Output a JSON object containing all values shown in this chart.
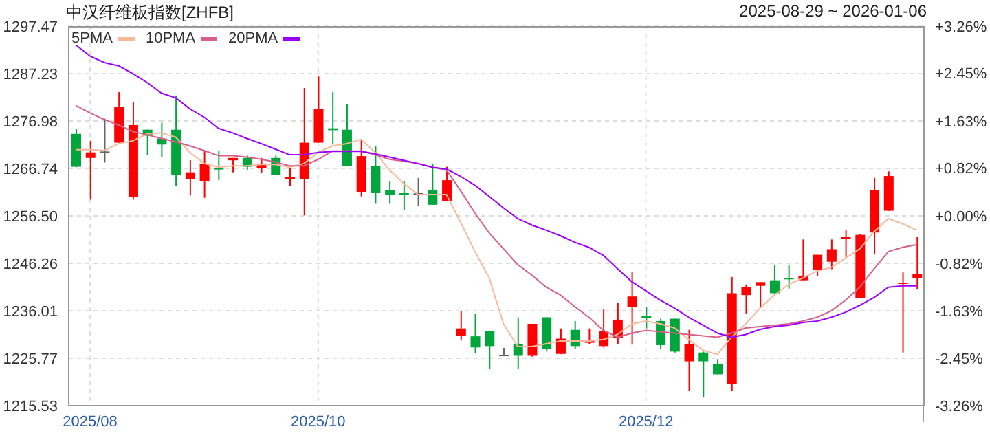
{
  "chart_data": {
    "type": "candlestick",
    "title": "中汉纤维板指数[ZHFB]",
    "subtitle": "2025-08-29 ~ 2026-01-06",
    "categories": [
      null,
      "2025/08",
      null,
      null,
      null,
      null,
      null,
      null,
      null,
      null,
      null,
      null,
      null,
      null,
      null,
      null,
      null,
      "2025/10",
      null,
      null,
      null,
      null,
      null,
      null,
      null,
      null,
      null,
      null,
      null,
      null,
      null,
      null,
      null,
      null,
      null,
      null,
      null,
      null,
      null,
      null,
      "2025/12",
      null,
      null,
      null,
      null,
      null,
      null,
      null,
      null,
      null,
      null,
      null,
      null,
      null,
      null,
      null,
      null,
      null,
      null,
      null
    ],
    "ohlc": [
      [
        1274.2,
        1275.2,
        1267.0,
        1267.1
      ],
      [
        1269.0,
        1272.7,
        1260.0,
        1270.2
      ],
      [
        1270.4,
        1277.5,
        1268.0,
        1270.4
      ],
      [
        1272.3,
        1283.2,
        1272.3,
        1280.1
      ],
      [
        1260.6,
        1281.0,
        1260.0,
        1276.1
      ],
      [
        1275.1,
        1275.1,
        1269.7,
        1273.8
      ],
      [
        1273.2,
        1276.6,
        1269.2,
        1271.9
      ],
      [
        1275.1,
        1282.5,
        1263.0,
        1265.4
      ],
      [
        1264.5,
        1268.5,
        1260.9,
        1265.9
      ],
      [
        1264.0,
        1270.6,
        1260.4,
        1267.8
      ],
      [
        1266.8,
        1270.6,
        1264.2,
        1266.7
      ],
      [
        1268.5,
        1269.0,
        1265.9,
        1269.0
      ],
      [
        1269.0,
        1269.5,
        1266.4,
        1267.1
      ],
      [
        1266.8,
        1269.0,
        1265.7,
        1267.8
      ],
      [
        1269.0,
        1269.5,
        1265.4,
        1265.4
      ],
      [
        1264.5,
        1266.8,
        1263.0,
        1264.9
      ],
      [
        1264.5,
        1284.1,
        1256.6,
        1272.3
      ],
      [
        1272.3,
        1286.6,
        1272.3,
        1279.6
      ],
      [
        1275.4,
        1283.2,
        1271.9,
        1275.0
      ],
      [
        1275.1,
        1280.6,
        1267.3,
        1267.3
      ],
      [
        1261.6,
        1272.8,
        1260.7,
        1269.4
      ],
      [
        1267.3,
        1271.6,
        1259.1,
        1261.4
      ],
      [
        1262.1,
        1264.0,
        1259.1,
        1261.0
      ],
      [
        1261.4,
        1264.0,
        1257.8,
        1261.0
      ],
      [
        1261.4,
        1264.7,
        1258.6,
        1261.4
      ],
      [
        1262.1,
        1267.8,
        1258.9,
        1258.9
      ],
      [
        1259.7,
        1267.1,
        1259.7,
        1264.2
      ],
      [
        1230.6,
        1236.0,
        1229.6,
        1232.2
      ],
      [
        1230.5,
        1235.4,
        1226.8,
        1228.1
      ],
      [
        1231.7,
        1231.7,
        1223.5,
        1228.4
      ],
      [
        1226.5,
        1228.0,
        1226.5,
        1226.5
      ],
      [
        1228.9,
        1234.6,
        1223.5,
        1226.3
      ],
      [
        1226.3,
        1233.2,
        1226.1,
        1233.2
      ],
      [
        1234.6,
        1234.6,
        1227.2,
        1227.7
      ],
      [
        1226.7,
        1232.2,
        1226.7,
        1230.0
      ],
      [
        1231.9,
        1233.8,
        1227.7,
        1228.4
      ],
      [
        1229.1,
        1232.2,
        1228.9,
        1229.7
      ],
      [
        1228.4,
        1236.3,
        1228.1,
        1231.7
      ],
      [
        1230.1,
        1237.7,
        1228.9,
        1234.1
      ],
      [
        1236.8,
        1244.5,
        1228.7,
        1239.1
      ],
      [
        1234.9,
        1236.8,
        1232.2,
        1234.4
      ],
      [
        1233.8,
        1234.3,
        1227.7,
        1228.6
      ],
      [
        1234.3,
        1234.3,
        1227.0,
        1227.2
      ],
      [
        1225.1,
        1231.9,
        1218.7,
        1228.9
      ],
      [
        1227.0,
        1227.2,
        1217.3,
        1225.1
      ],
      [
        1224.6,
        1225.6,
        1222.3,
        1222.3
      ],
      [
        1220.2,
        1243.3,
        1218.7,
        1239.8
      ],
      [
        1239.4,
        1241.7,
        1235.3,
        1241.2
      ],
      [
        1241.4,
        1242.2,
        1236.7,
        1242.2
      ],
      [
        1242.6,
        1245.8,
        1239.8,
        1239.8
      ],
      [
        1243.1,
        1245.8,
        1240.8,
        1242.8
      ],
      [
        1242.6,
        1251.4,
        1242.6,
        1243.6
      ],
      [
        1244.8,
        1248.1,
        1243.6,
        1248.1
      ],
      [
        1246.6,
        1251.4,
        1245.0,
        1249.3
      ],
      [
        1251.5,
        1253.4,
        1247.6,
        1251.9
      ],
      [
        1238.7,
        1252.6,
        1238.7,
        1252.4
      ],
      [
        1252.9,
        1264.7,
        1248.3,
        1262.1
      ],
      [
        1257.6,
        1266.1,
        1257.6,
        1265.1
      ],
      [
        1241.8,
        1244.3,
        1227.0,
        1242.1
      ],
      [
        1243.1,
        1251.9,
        1240.6,
        1243.9
      ]
    ],
    "colors": [
      "#00a53c",
      "#ff0000",
      "#666666",
      "#ff0000",
      "#ff0000",
      "#00a53c",
      "#00a53c",
      "#00a53c",
      "#ff0000",
      "#ff0000",
      "#00a53c",
      "#ff0000",
      "#00a53c",
      "#ff0000",
      "#00a53c",
      "#ff0000",
      "#ff0000",
      "#ff0000",
      "#00a53c",
      "#00a53c",
      "#ff0000",
      "#00a53c",
      "#00a53c",
      "#00a53c",
      "#666666",
      "#00a53c",
      "#ff0000",
      "#ff0000",
      "#00a53c",
      "#00a53c",
      "#666666",
      "#00a53c",
      "#ff0000",
      "#00a53c",
      "#ff0000",
      "#00a53c",
      "#ff0000",
      "#ff0000",
      "#ff0000",
      "#ff0000",
      "#00a53c",
      "#00a53c",
      "#00a53c",
      "#ff0000",
      "#00a53c",
      "#00a53c",
      "#ff0000",
      "#ff0000",
      "#ff0000",
      "#00a53c",
      "#00a53c",
      "#ff0000",
      "#ff0000",
      "#ff0000",
      "#ff0000",
      "#ff0000",
      "#ff0000",
      "#ff0000",
      "#ff0000",
      "#ff0000"
    ],
    "series": [
      {
        "name": "5PMA",
        "type": "line",
        "color": "#f7b99a",
        "values": [
          1270.8,
          1270.8,
          1270.6,
          1272.1,
          1272.7,
          1274.2,
          1274.4,
          1273.5,
          1270.2,
          1267.8,
          1267.0,
          1267.3,
          1267.3,
          1267.6,
          1267.6,
          1267.0,
          1267.8,
          1270.2,
          1271.6,
          1272.1,
          1273.0,
          1270.2,
          1266.4,
          1263.5,
          1261.1,
          1261.1,
          1261.1,
          1255.1,
          1248.8,
          1243.1,
          1233.2,
          1228.3,
          1228.3,
          1228.9,
          1229.5,
          1229.5,
          1229.5,
          1229.8,
          1230.9,
          1233.2,
          1233.8,
          1233.2,
          1232.3,
          1229.8,
          1227.5,
          1226.6,
          1230.3,
          1233.2,
          1236.6,
          1239.4,
          1241.7,
          1243.1,
          1244.6,
          1245.4,
          1247.4,
          1249.4,
          1253.1,
          1255.9,
          1254.8,
          1253.4
        ]
      },
      {
        "name": "10PMA",
        "type": "line",
        "color": "#d6608a",
        "values": [
          1280.3,
          1278.7,
          1277.3,
          1276.1,
          1274.7,
          1274.0,
          1273.2,
          1272.5,
          1271.6,
          1270.6,
          1269.5,
          1269.5,
          1269.2,
          1268.7,
          1268.1,
          1267.3,
          1267.3,
          1268.7,
          1270.5,
          1270.5,
          1270.5,
          1269.7,
          1268.7,
          1268.3,
          1267.8,
          1267.0,
          1266.4,
          1261.9,
          1257.1,
          1252.8,
          1249.4,
          1246.0,
          1243.7,
          1241.1,
          1239.4,
          1236.9,
          1234.6,
          1231.8,
          1230.3,
          1231.2,
          1231.8,
          1231.5,
          1231.2,
          1230.9,
          1230.6,
          1230.3,
          1231.2,
          1232.3,
          1232.6,
          1232.9,
          1233.2,
          1233.8,
          1234.6,
          1236.0,
          1238.3,
          1241.1,
          1245.1,
          1248.8,
          1249.7,
          1250.3
        ]
      },
      {
        "name": "20PMA",
        "type": "line",
        "color": "#9b00ff",
        "values": [
          1293.4,
          1291.0,
          1289.6,
          1288.9,
          1287.2,
          1285.3,
          1283.0,
          1282.0,
          1279.6,
          1277.8,
          1275.4,
          1274.4,
          1273.2,
          1272.1,
          1270.9,
          1269.7,
          1269.7,
          1270.2,
          1270.4,
          1270.4,
          1270.4,
          1269.9,
          1269.2,
          1268.5,
          1267.8,
          1267.0,
          1266.6,
          1265.0,
          1263.1,
          1260.7,
          1258.2,
          1255.9,
          1254.5,
          1253.4,
          1252.2,
          1250.8,
          1249.7,
          1248.0,
          1245.1,
          1242.3,
          1240.3,
          1238.3,
          1236.6,
          1234.6,
          1232.9,
          1231.2,
          1230.3,
          1230.9,
          1232.0,
          1232.6,
          1232.9,
          1233.5,
          1233.8,
          1234.6,
          1235.7,
          1237.2,
          1238.9,
          1241.1,
          1241.4,
          1241.4
        ]
      }
    ],
    "ylim": [
      1215.53,
      1297.47
    ],
    "yticks": [
      1215.53,
      1225.77,
      1236.01,
      1246.26,
      {
        "value": 1256.5,
        "label": "1256.50"
      },
      1266.74,
      1276.98,
      1287.23,
      1297.47
    ],
    "y2lim": [
      -3.26,
      3.26
    ],
    "y2ticks": [
      {
        "value": -3.26,
        "label": "-3.26%"
      },
      {
        "value": -2.45,
        "label": "-2.45%"
      },
      {
        "value": -1.63,
        "label": "-1.63%"
      },
      {
        "value": -0.82,
        "label": "-0.82%"
      },
      {
        "value": 0,
        "label": "+0.00%"
      },
      {
        "value": 0.82,
        "label": "+0.82%"
      },
      {
        "value": 1.63,
        "label": "+1.63%"
      },
      {
        "value": 2.45,
        "label": "+2.45%"
      },
      {
        "value": 3.26,
        "label": "+3.26%"
      }
    ],
    "grid": true,
    "legend": "top left"
  }
}
